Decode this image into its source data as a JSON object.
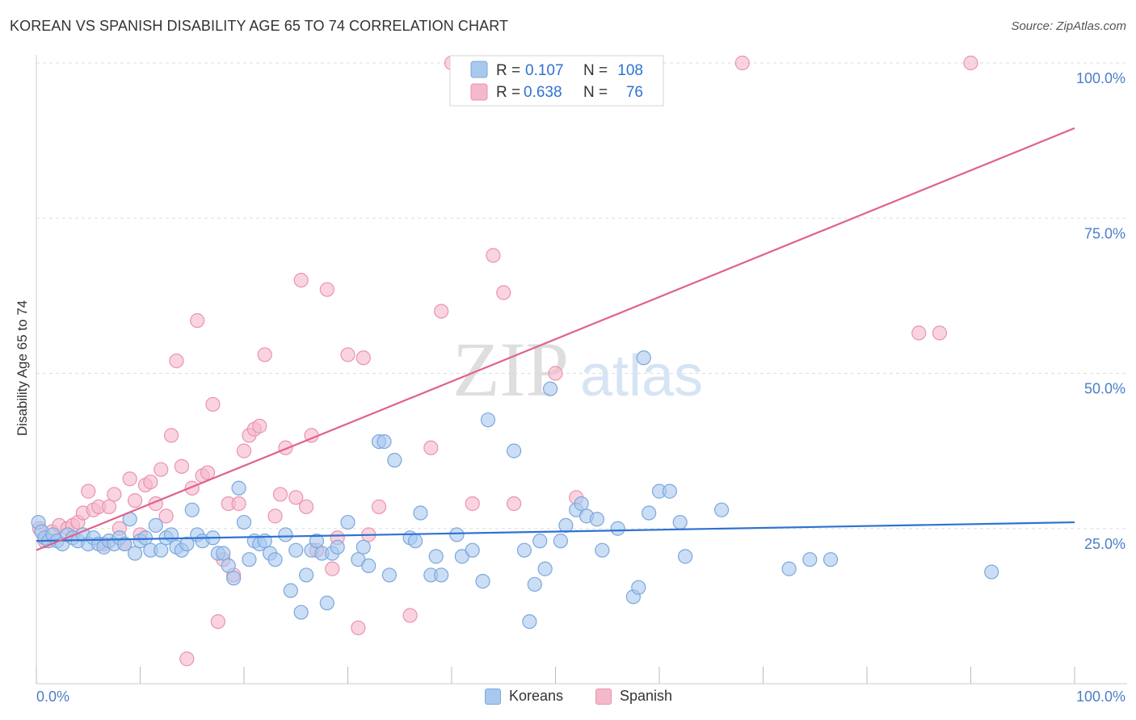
{
  "title": "KOREAN VS SPANISH DISABILITY AGE 65 TO 74 CORRELATION CHART",
  "source": "Source: ZipAtlas.com",
  "watermark": {
    "zip": "ZIP",
    "atlas": "atlas"
  },
  "colors": {
    "koreans_fill": "#a9c8ee",
    "koreans_stroke": "#7aa8dd",
    "koreans_line": "#2e72d2",
    "spanish_fill": "#f5b8cb",
    "spanish_stroke": "#ea93ae",
    "spanish_line": "#e0628a",
    "tick_blue": "#4a7fc8",
    "grid": "#dddddd"
  },
  "legend_box": {
    "rows": [
      {
        "series": "Koreans",
        "r_label": "R =",
        "r_value": "0.107",
        "n_label": "N =",
        "n_value": "108"
      },
      {
        "series": "Spanish",
        "r_label": "R =",
        "r_value": "0.638",
        "n_label": "N =",
        "n_value": "76"
      }
    ]
  },
  "chart_data": {
    "type": "scatter",
    "title": "KOREAN VS SPANISH DISABILITY AGE 65 TO 74 CORRELATION CHART",
    "xlabel": "",
    "ylabel": "Disability Age 65 to 74",
    "xlim": [
      0,
      100
    ],
    "ylim": [
      0,
      100
    ],
    "x_tick_labels": [
      "0.0%",
      "100.0%"
    ],
    "y_tick_labels": [
      "25.0%",
      "50.0%",
      "75.0%",
      "100.0%"
    ],
    "y_ticks": [
      25,
      50,
      75,
      100
    ],
    "grid": true,
    "legend_position": "bottom",
    "series": [
      {
        "name": "Koreans",
        "trend": {
          "x": [
            0,
            100
          ],
          "y": [
            23.0,
            26.0
          ]
        },
        "points": [
          [
            0.2,
            26
          ],
          [
            0.5,
            24.5
          ],
          [
            0.8,
            23.5
          ],
          [
            1.2,
            23
          ],
          [
            1.6,
            24
          ],
          [
            2,
            23
          ],
          [
            2.5,
            22.5
          ],
          [
            3,
            24
          ],
          [
            3.5,
            23.5
          ],
          [
            4,
            23
          ],
          [
            4.5,
            24
          ],
          [
            5,
            22.5
          ],
          [
            5.5,
            23.5
          ],
          [
            6,
            22.5
          ],
          [
            6.5,
            22
          ],
          [
            7,
            23
          ],
          [
            7.5,
            22.5
          ],
          [
            8,
            23.5
          ],
          [
            8.5,
            22.5
          ],
          [
            9,
            26.5
          ],
          [
            9.5,
            21
          ],
          [
            10,
            23
          ],
          [
            10.5,
            23.5
          ],
          [
            11,
            21.5
          ],
          [
            11.5,
            25.5
          ],
          [
            12,
            21.5
          ],
          [
            12.5,
            23.5
          ],
          [
            13,
            24
          ],
          [
            13.5,
            22
          ],
          [
            14,
            21.5
          ],
          [
            14.5,
            22.5
          ],
          [
            15,
            28
          ],
          [
            15.5,
            24
          ],
          [
            16,
            23
          ],
          [
            17,
            23.5
          ],
          [
            17.5,
            21
          ],
          [
            18,
            21
          ],
          [
            18.5,
            19
          ],
          [
            19,
            17
          ],
          [
            19.5,
            31.5
          ],
          [
            20,
            26
          ],
          [
            20.5,
            20
          ],
          [
            21,
            23
          ],
          [
            21.5,
            22.5
          ],
          [
            22,
            23
          ],
          [
            22.5,
            21
          ],
          [
            23,
            20
          ],
          [
            24,
            24
          ],
          [
            24.5,
            15
          ],
          [
            25,
            21.5
          ],
          [
            25.5,
            11.5
          ],
          [
            26,
            17.5
          ],
          [
            26.5,
            21.5
          ],
          [
            27,
            23
          ],
          [
            27.5,
            21
          ],
          [
            28,
            13
          ],
          [
            28.5,
            21
          ],
          [
            29,
            22
          ],
          [
            30,
            26
          ],
          [
            31,
            20
          ],
          [
            31.5,
            22
          ],
          [
            32,
            19
          ],
          [
            33,
            39
          ],
          [
            33.5,
            39
          ],
          [
            34,
            17.5
          ],
          [
            34.5,
            36
          ],
          [
            36,
            23.5
          ],
          [
            36.5,
            23
          ],
          [
            37,
            27.5
          ],
          [
            38,
            17.5
          ],
          [
            38.5,
            20.5
          ],
          [
            39,
            17.5
          ],
          [
            40.5,
            24
          ],
          [
            41,
            20.5
          ],
          [
            42,
            21.5
          ],
          [
            43,
            16.5
          ],
          [
            43.5,
            42.5
          ],
          [
            46,
            37.5
          ],
          [
            47,
            21.5
          ],
          [
            47.5,
            10
          ],
          [
            48,
            16
          ],
          [
            48.5,
            23
          ],
          [
            49,
            18.5
          ],
          [
            49.5,
            47.5
          ],
          [
            50.5,
            23
          ],
          [
            51,
            25.5
          ],
          [
            52,
            28
          ],
          [
            52.5,
            29
          ],
          [
            53,
            27
          ],
          [
            54,
            26.5
          ],
          [
            54.5,
            21.5
          ],
          [
            56,
            25
          ],
          [
            57.5,
            14
          ],
          [
            58,
            15.5
          ],
          [
            58.5,
            52.5
          ],
          [
            59,
            27.5
          ],
          [
            60,
            31
          ],
          [
            61,
            31
          ],
          [
            62,
            26
          ],
          [
            62.5,
            20.5
          ],
          [
            66,
            28
          ],
          [
            72.5,
            18.5
          ],
          [
            74.5,
            20
          ],
          [
            76.5,
            20
          ],
          [
            92,
            18
          ]
        ]
      },
      {
        "name": "Spanish",
        "trend": {
          "x": [
            0,
            100
          ],
          "y": [
            21.5,
            89.5
          ]
        },
        "points": [
          [
            0.3,
            25
          ],
          [
            0.8,
            23
          ],
          [
            1.5,
            24.5
          ],
          [
            2.2,
            25.5
          ],
          [
            3,
            25
          ],
          [
            3.5,
            25.5
          ],
          [
            4,
            26
          ],
          [
            4.5,
            27.5
          ],
          [
            5,
            31
          ],
          [
            5.5,
            28
          ],
          [
            6,
            28.5
          ],
          [
            6.5,
            22.5
          ],
          [
            7,
            28.5
          ],
          [
            7.5,
            30.5
          ],
          [
            8,
            25
          ],
          [
            8.5,
            22.5
          ],
          [
            9,
            33
          ],
          [
            9.5,
            29.5
          ],
          [
            10,
            24
          ],
          [
            10.5,
            32
          ],
          [
            11,
            32.5
          ],
          [
            11.5,
            29
          ],
          [
            12,
            34.5
          ],
          [
            12.5,
            27
          ],
          [
            13,
            40
          ],
          [
            13.5,
            52
          ],
          [
            14,
            35
          ],
          [
            14.5,
            4
          ],
          [
            15,
            31.5
          ],
          [
            15.5,
            58.5
          ],
          [
            16,
            33.5
          ],
          [
            16.5,
            34
          ],
          [
            17,
            45
          ],
          [
            17.5,
            10
          ],
          [
            18,
            20
          ],
          [
            18.5,
            29
          ],
          [
            19,
            17.5
          ],
          [
            19.5,
            29
          ],
          [
            20,
            37.5
          ],
          [
            20.5,
            40
          ],
          [
            21,
            41
          ],
          [
            21.5,
            41.5
          ],
          [
            22,
            53
          ],
          [
            23,
            27
          ],
          [
            23.5,
            30.5
          ],
          [
            24,
            38
          ],
          [
            25,
            30
          ],
          [
            25.5,
            65
          ],
          [
            26,
            28.5
          ],
          [
            26.5,
            40
          ],
          [
            27,
            21.5
          ],
          [
            28,
            63.5
          ],
          [
            28.5,
            18.5
          ],
          [
            29,
            23.5
          ],
          [
            30,
            53
          ],
          [
            31,
            9
          ],
          [
            31.5,
            52.5
          ],
          [
            32,
            24
          ],
          [
            33,
            28.5
          ],
          [
            36,
            11
          ],
          [
            38,
            38
          ],
          [
            39,
            60
          ],
          [
            40,
            100
          ],
          [
            42,
            29
          ],
          [
            44,
            69
          ],
          [
            45,
            63
          ],
          [
            46,
            29
          ],
          [
            48,
            100
          ],
          [
            50,
            50
          ],
          [
            52,
            30
          ],
          [
            68,
            100
          ],
          [
            85,
            56.5
          ],
          [
            87,
            56.5
          ],
          [
            90,
            100
          ]
        ]
      }
    ]
  }
}
